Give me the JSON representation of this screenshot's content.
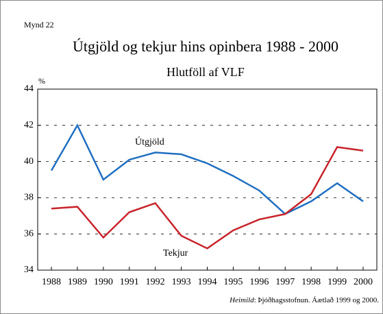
{
  "chart_data": {
    "type": "line",
    "figure_label": "Mynd 22",
    "title": "Útgjöld og tekjur hins opinbera 1988 - 2000",
    "subtitle": "Hlutföll af VLF",
    "y_axis_label": "%",
    "categories": [
      "1988",
      "1989",
      "1990",
      "1991",
      "1992",
      "1993",
      "1994",
      "1995",
      "1996",
      "1997",
      "1998",
      "1999",
      "2000"
    ],
    "series": [
      {
        "name": "Útgjöld",
        "color": "#1f6fc0",
        "values": [
          39.5,
          42.0,
          39.0,
          40.1,
          40.5,
          40.4,
          39.9,
          39.2,
          38.4,
          37.1,
          37.8,
          38.8,
          37.8
        ]
      },
      {
        "name": "Tekjur",
        "color": "#c8242b",
        "values": [
          37.4,
          37.5,
          35.8,
          37.2,
          37.7,
          35.9,
          35.2,
          36.2,
          36.8,
          37.1,
          38.2,
          40.8,
          40.6
        ]
      }
    ],
    "ylim": [
      34,
      44
    ],
    "yticks": [
      34,
      36,
      38,
      40,
      42,
      44
    ],
    "grid": true,
    "source": {
      "label": "Heimild",
      "text": ": Þjóðhagsstofnun. Áætlað 1999 og 2000."
    }
  }
}
